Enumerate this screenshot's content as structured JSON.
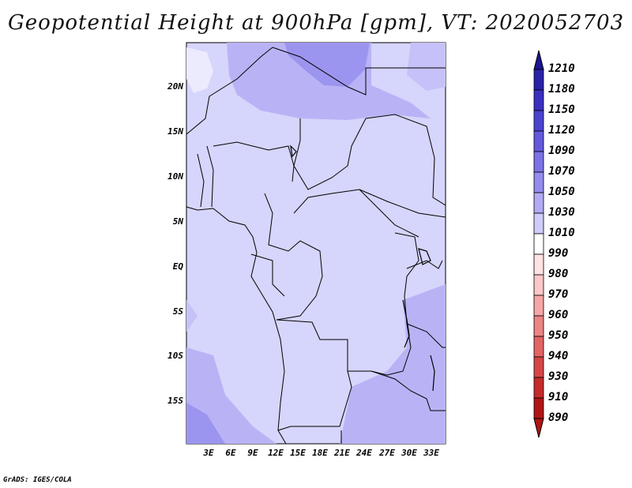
{
  "title": "Geopotential Height at 900hPa [gpm], VT: 2020052703",
  "credit": "GrADS: IGES/COLA",
  "lat_labels": [
    "20N",
    "15N",
    "10N",
    "5N",
    "EQ",
    "5S",
    "10S",
    "15S"
  ],
  "lon_labels": [
    "3E",
    "6E",
    "9E",
    "12E",
    "15E",
    "18E",
    "21E",
    "24E",
    "27E",
    "30E",
    "33E"
  ],
  "colorbar": {
    "levels": [
      "1210",
      "1180",
      "1150",
      "1120",
      "1090",
      "1070",
      "1050",
      "1030",
      "1010",
      "990",
      "980",
      "970",
      "960",
      "950",
      "940",
      "930",
      "910",
      "890"
    ],
    "colors": [
      "#1c1590",
      "#2a22a8",
      "#3a30c0",
      "#4b42d0",
      "#6459dd",
      "#7d72e6",
      "#958cee",
      "#b2abf4",
      "#d0ccfa",
      "#ffffff",
      "#fde3e3",
      "#fbc8c8",
      "#f5a7a7",
      "#ec8585",
      "#e26464",
      "#d64646",
      "#c52b2b",
      "#b01616"
    ]
  },
  "map_colors": {
    "c1010": "#d6d5fb",
    "c1030": "#b9b3f6",
    "c1050": "#9c95ef",
    "c990": "#ffffff"
  }
}
